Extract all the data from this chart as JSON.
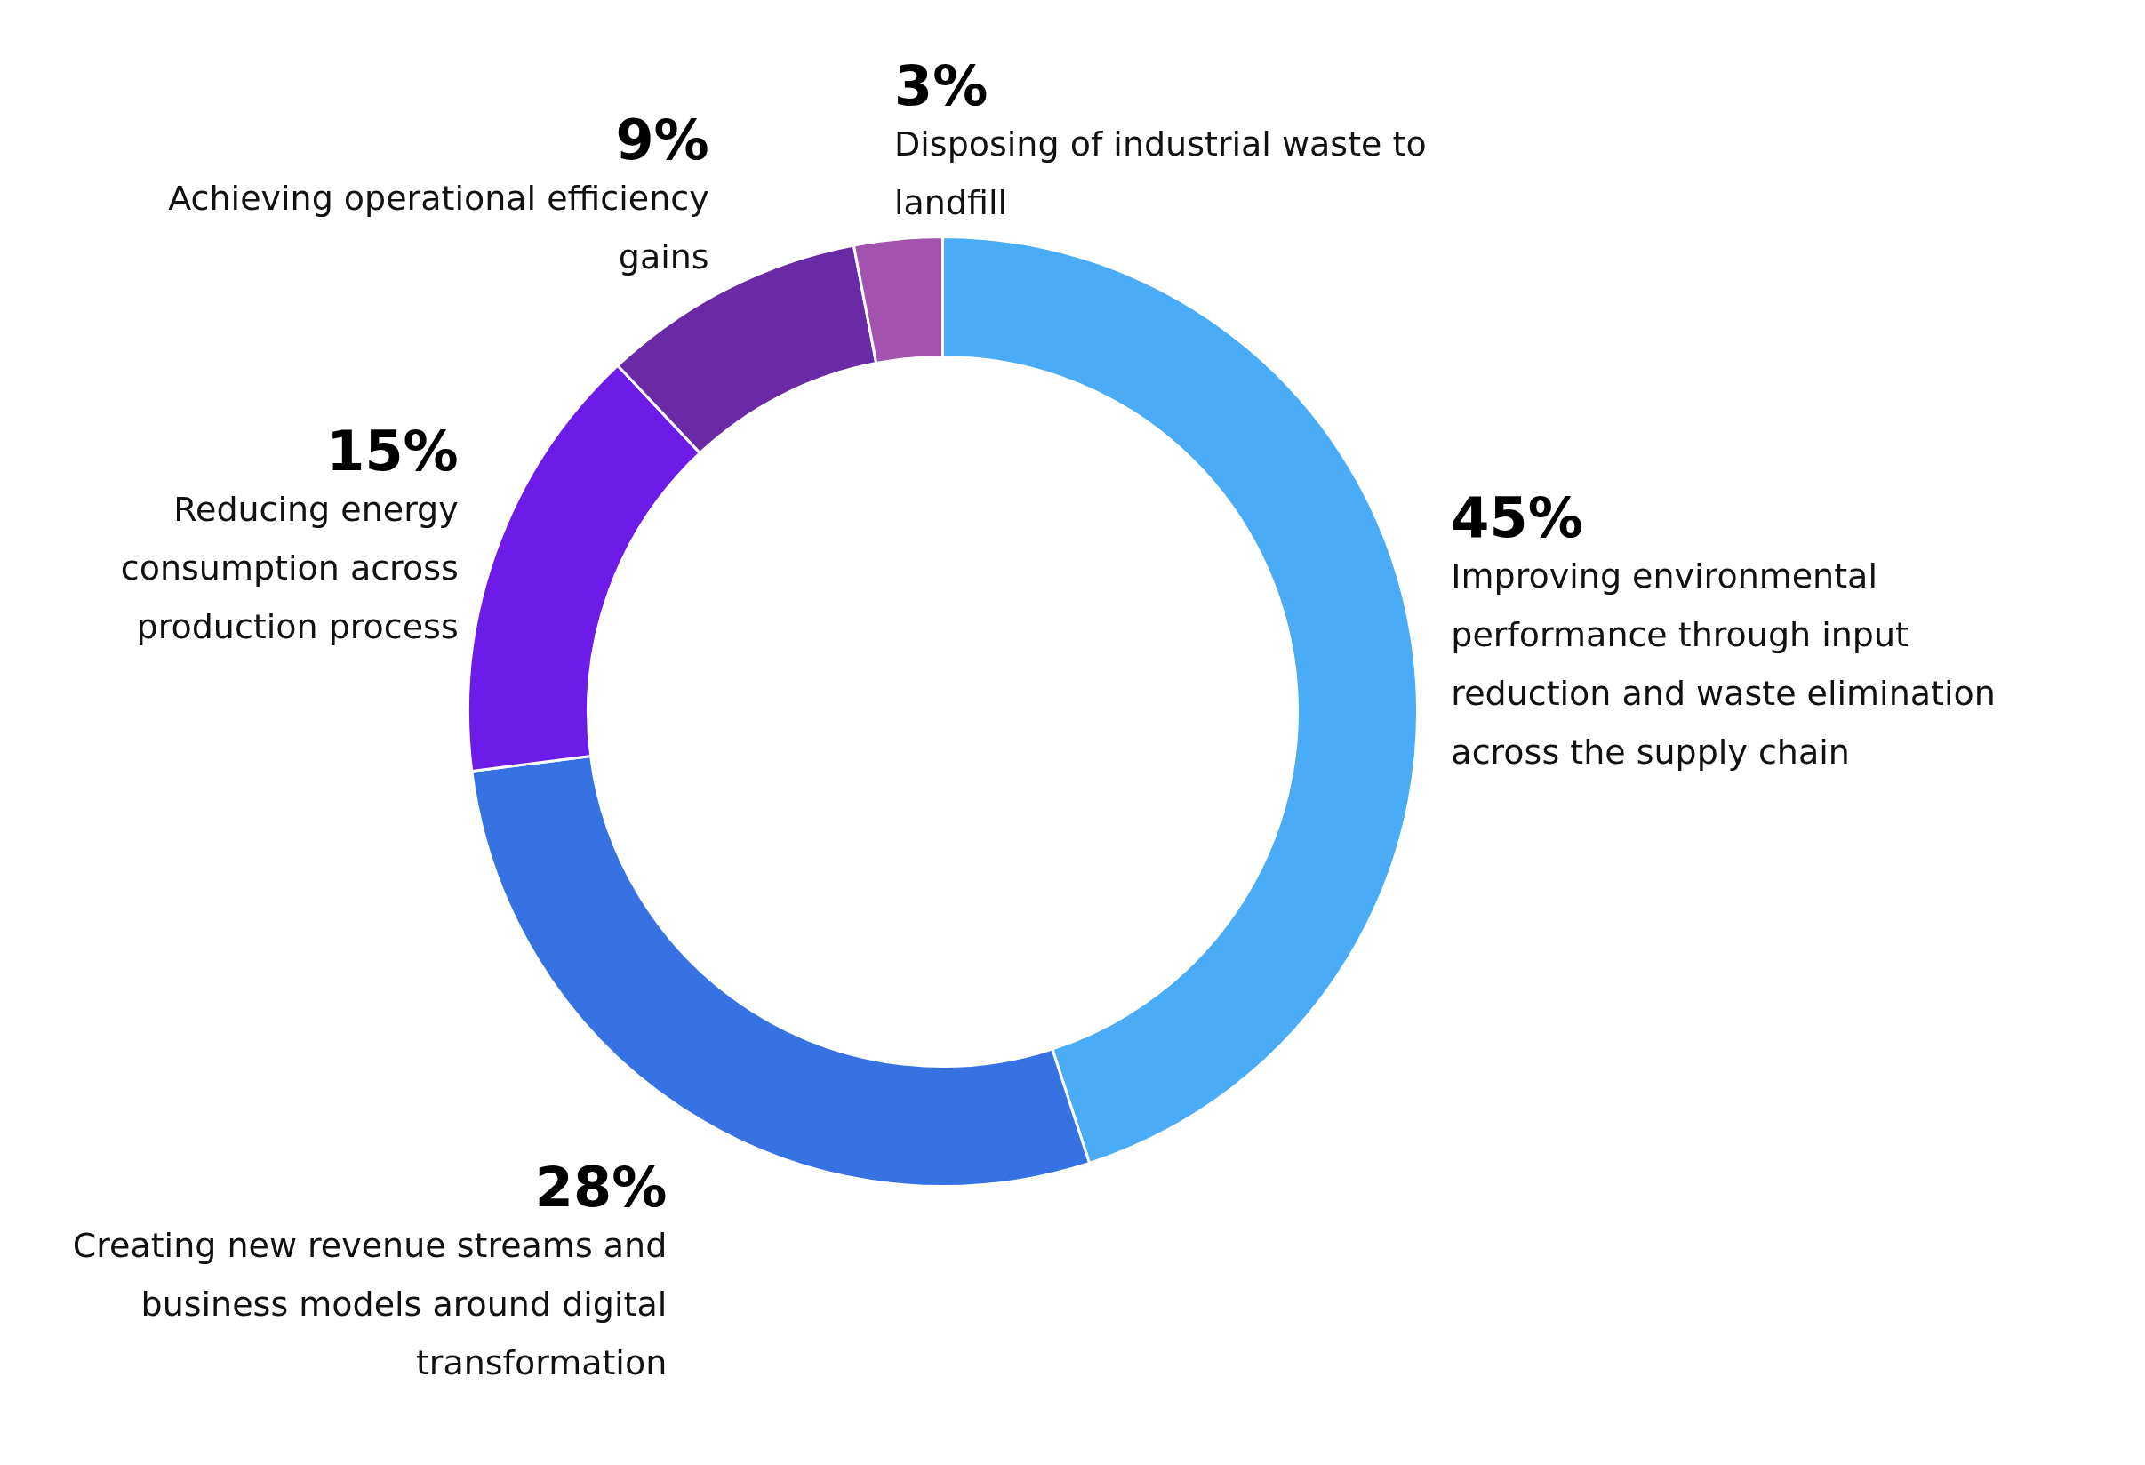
{
  "chart_data": {
    "type": "donut",
    "categories": [
      "Improving environmental performance through input reduction and waste elimination across the supply chain",
      "Creating new revenue streams and business models around digital transformation",
      "Reducing energy consumption across production process",
      "Achieving operational efficiency gains",
      "Disposing of industrial waste to landfill"
    ],
    "values": [
      45,
      28,
      15,
      9,
      3
    ],
    "colors": [
      "#4aabf7",
      "#3672e2",
      "#6d1be8",
      "#6a2aa6",
      "#a352ad"
    ],
    "value_labels": [
      "45%",
      "28%",
      "15%",
      "9%",
      "3%"
    ]
  }
}
